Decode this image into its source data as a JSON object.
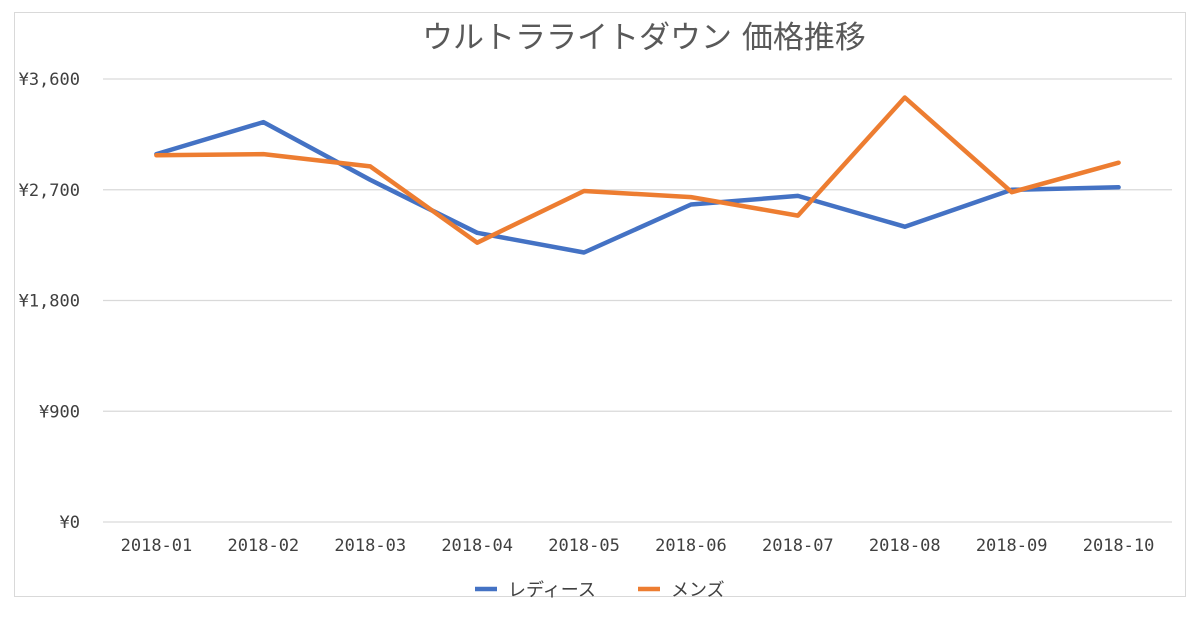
{
  "chart_data": {
    "type": "line",
    "title": "ウルトラライトダウン 価格推移",
    "xlabel": "",
    "ylabel": "",
    "categories": [
      "2018-01",
      "2018-02",
      "2018-03",
      "2018-04",
      "2018-05",
      "2018-06",
      "2018-07",
      "2018-08",
      "2018-09",
      "2018-10"
    ],
    "y_ticks": [
      "¥0",
      "¥900",
      "¥1,800",
      "¥2,700",
      "¥3,600"
    ],
    "ylim": [
      0,
      3600
    ],
    "grid": true,
    "legend_position": "bottom",
    "series": [
      {
        "name": "レディース",
        "color": "#4472c4",
        "values": [
          2990,
          3250,
          2780,
          2350,
          2190,
          2580,
          2650,
          2400,
          2700,
          2720
        ]
      },
      {
        "name": "メンズ",
        "color": "#ed7d31",
        "values": [
          2980,
          2990,
          2890,
          2270,
          2690,
          2640,
          2490,
          3450,
          2680,
          2920
        ]
      }
    ]
  }
}
